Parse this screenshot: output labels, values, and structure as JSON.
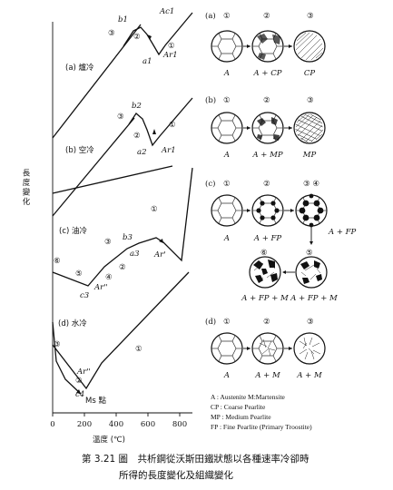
{
  "left_panel": {
    "y_axis_label": "長度變化",
    "x_axis_label": "溫度 (℃)",
    "x_ticks": [
      "0",
      "200",
      "400",
      "600",
      "800"
    ],
    "curves": [
      {
        "label": "(a) 爐冷",
        "points": [
          "b1",
          "Ac1",
          "a1",
          "Ar1"
        ],
        "stages": [
          "③",
          "②",
          "①"
        ]
      },
      {
        "label": "(b) 空冷",
        "points": [
          "b2",
          "a2",
          "Ar1"
        ],
        "stages": [
          "③",
          "②",
          "①"
        ]
      },
      {
        "label": "(c) 油冷",
        "points": [
          "b3",
          "a3",
          "Ar'",
          "c3",
          "Ar''"
        ],
        "stages": [
          "③",
          "②",
          "①",
          "④",
          "⑤",
          "⑥"
        ]
      },
      {
        "label": "(d) 水冷",
        "points": [
          "Ar''",
          "c4",
          "Ms 點"
        ],
        "stages": [
          "③",
          "②",
          "①"
        ]
      }
    ]
  },
  "right_panel": {
    "a": {
      "label": "(a)",
      "stages": [
        "①",
        "②",
        "③"
      ],
      "phases": [
        "A",
        "A + CP",
        "CP"
      ]
    },
    "b": {
      "label": "(b)",
      "stages": [
        "①",
        "②",
        "③"
      ],
      "phases": [
        "A",
        "A + MP",
        "MP"
      ]
    },
    "c": {
      "label": "(c)",
      "stages": [
        "①",
        "②",
        "③ ④",
        "⑤",
        "⑥"
      ],
      "phases": [
        "A",
        "A + FP",
        "A + FP",
        "A + FP + M",
        "A + FP + M"
      ]
    },
    "d": {
      "label": "(d)",
      "stages": [
        "①",
        "②",
        "③"
      ],
      "phases": [
        "A",
        "A + M",
        "A + M"
      ]
    }
  },
  "legend": [
    "A : Austenite      M:Martensite",
    "CP : Coarse Pearlite",
    "MP : Medium Pearlite",
    "FP : Fine Pearlite (Primary Troostite)"
  ],
  "caption": {
    "line1": "第 3.21 圖　共析鋼從沃斯田鐵狀態以各種速率冷卻時",
    "line2": "所得的長度變化及組織變化"
  }
}
